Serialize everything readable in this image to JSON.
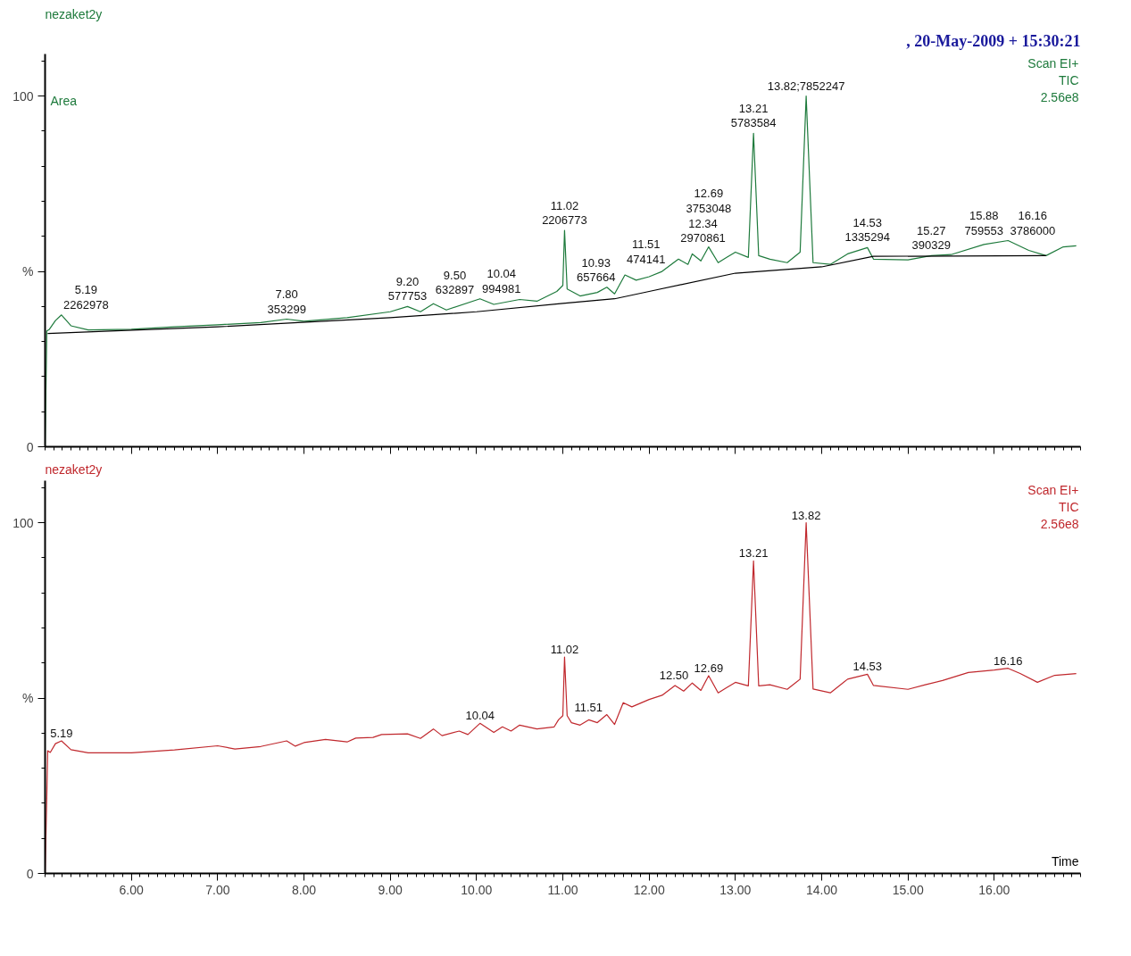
{
  "chart_data": [
    {
      "type": "line",
      "title": "nezaket2y",
      "subtitle": "Scan EI+\nTIC\n2.56e8",
      "xlim": [
        5,
        17
      ],
      "ylim": [
        0,
        112
      ],
      "xticks": [
        6,
        7,
        8,
        9,
        10,
        11,
        12,
        13,
        14,
        15,
        16
      ],
      "yticks": [
        0,
        {
          "value": 50,
          "label": "%"
        },
        100
      ],
      "tick_labels": "y",
      "series": [
        {
          "color": "#1e7a3c",
          "x": [
            5.0,
            5.02,
            5.05,
            5.12,
            5.19,
            5.3,
            5.5,
            6.0,
            6.5,
            7.0,
            7.5,
            7.8,
            8.0,
            8.5,
            9.0,
            9.2,
            9.35,
            9.5,
            9.65,
            10.04,
            10.2,
            10.5,
            10.7,
            10.93,
            11.0,
            11.02,
            11.05,
            11.2,
            11.4,
            11.51,
            11.6,
            11.72,
            11.85,
            12.0,
            12.15,
            12.34,
            12.45,
            12.5,
            12.6,
            12.69,
            12.8,
            12.9,
            13.0,
            13.15,
            13.21,
            13.27,
            13.4,
            13.6,
            13.75,
            13.82,
            13.9,
            14.1,
            14.3,
            14.53,
            14.6,
            15.0,
            15.27,
            15.5,
            15.88,
            16.16,
            16.4,
            16.6,
            16.8,
            16.95
          ],
          "values": [
            0,
            33,
            33.5,
            36,
            37.6,
            34.5,
            33.3,
            33.5,
            34.2,
            34.8,
            35.4,
            36.4,
            35.8,
            36.8,
            38.5,
            40,
            38.5,
            40.8,
            39,
            42.2,
            40.6,
            42,
            41.5,
            44.3,
            46,
            61.7,
            45,
            43,
            44,
            45.5,
            43.6,
            49,
            47.5,
            48.5,
            50,
            53.5,
            52,
            55,
            53,
            57,
            52.5,
            54,
            55.5,
            54,
            89.4,
            54.5,
            53.5,
            52.5,
            55.5,
            100,
            52.5,
            52,
            55,
            56.8,
            53.5,
            53.3,
            54.5,
            54.8,
            57.7,
            58.8,
            56,
            54.5,
            57,
            57.3
          ]
        },
        {
          "color": "#000000",
          "x": [
            5.03,
            7.0,
            9.0,
            10.0,
            11.0,
            11.6,
            12.0,
            13.0,
            14.0,
            14.6,
            16.6
          ],
          "values": [
            32.3,
            34.2,
            36.8,
            38.5,
            40.9,
            42.2,
            44.3,
            49.5,
            51.3,
            54.3,
            54.5
          ]
        }
      ],
      "annotations": [
        ", 20-May-2009 + 15:30:21",
        "Area",
        {
          "text": "5.19\n2262978",
          "x": 5.19,
          "y": 37.6
        },
        {
          "text": "7.80\n353299",
          "x": 7.8,
          "y": 36.4
        },
        {
          "text": "9.20\n577753",
          "x": 9.2,
          "y": 40
        },
        {
          "text": "9.50\n632897",
          "x": 9.5,
          "y": 40.8
        },
        {
          "text": "10.04\n994981",
          "x": 10.04,
          "y": 42.2
        },
        {
          "text": "10.93\n657664",
          "x": 10.93,
          "y": 44.3
        },
        {
          "text": "11.02\n2206773",
          "x": 11.02,
          "y": 61.7
        },
        {
          "text": "11.51\n474141",
          "x": 11.51,
          "y": 45.5
        },
        {
          "text": "12.34\n2970861",
          "x": 12.34,
          "y": 53.5
        },
        {
          "text": "12.69\n3753048",
          "x": 12.69,
          "y": 57
        },
        {
          "text": "13.21\n5783584",
          "x": 13.21,
          "y": 89.4
        },
        {
          "text": "13.82;7852247",
          "x": 13.82,
          "y": 100
        },
        {
          "text": "14.53\n1335294",
          "x": 14.53,
          "y": 56.8
        },
        {
          "text": "15.27\n390329",
          "x": 15.27,
          "y": 54.5
        },
        {
          "text": "15.88\n759553",
          "x": 15.88,
          "y": 57.7
        },
        {
          "text": "16.16\n3786000",
          "x": 16.16,
          "y": 58.8
        }
      ]
    },
    {
      "type": "line",
      "title": "nezaket2y",
      "subtitle": "Scan EI+\nTIC\n2.56e8",
      "xlabel": "Time",
      "xlim": [
        5,
        17
      ],
      "ylim": [
        0,
        112
      ],
      "xticks": [
        {
          "value": 6,
          "label": "6.00"
        },
        {
          "value": 7,
          "label": "7.00"
        },
        {
          "value": 8,
          "label": "8.00"
        },
        {
          "value": 9,
          "label": "9.00"
        },
        {
          "value": 10,
          "label": "10.00"
        },
        {
          "value": 11,
          "label": "11.00"
        },
        {
          "value": 12,
          "label": "12.00"
        },
        {
          "value": 13,
          "label": "13.00"
        },
        {
          "value": 14,
          "label": "14.00"
        },
        {
          "value": 15,
          "label": "15.00"
        },
        {
          "value": 16,
          "label": "16.00"
        }
      ],
      "yticks": [
        0,
        {
          "value": 50,
          "label": "%"
        },
        100
      ],
      "series": [
        {
          "color": "#c0282d",
          "x": [
            5.0,
            5.02,
            5.03,
            5.06,
            5.12,
            5.19,
            5.3,
            5.5,
            6.0,
            6.5,
            7.0,
            7.2,
            7.5,
            7.8,
            7.9,
            8.0,
            8.25,
            8.5,
            8.6,
            8.8,
            8.9,
            9.2,
            9.35,
            9.5,
            9.6,
            9.8,
            9.9,
            10.04,
            10.2,
            10.3,
            10.4,
            10.5,
            10.7,
            10.9,
            10.95,
            11.0,
            11.02,
            11.05,
            11.1,
            11.2,
            11.3,
            11.4,
            11.51,
            11.6,
            11.7,
            11.8,
            12.0,
            12.15,
            12.3,
            12.4,
            12.5,
            12.6,
            12.69,
            12.8,
            12.9,
            13.0,
            13.15,
            13.21,
            13.27,
            13.4,
            13.6,
            13.75,
            13.82,
            13.9,
            14.1,
            14.3,
            14.53,
            14.6,
            15.0,
            15.2,
            15.4,
            15.7,
            16.0,
            16.16,
            16.3,
            16.5,
            16.7,
            16.95
          ],
          "values": [
            0,
            22,
            35,
            34.5,
            37,
            37.8,
            35.3,
            34.4,
            34.4,
            35.2,
            36.4,
            35.5,
            36.2,
            37.8,
            36.3,
            37.3,
            38.2,
            37.5,
            38.6,
            38.8,
            39.6,
            39.8,
            38.5,
            41.2,
            39.3,
            40.6,
            39.6,
            42.8,
            40.2,
            41.8,
            40.6,
            42.3,
            41.2,
            41.8,
            43.8,
            45,
            61.7,
            45,
            43,
            42.3,
            43.8,
            43,
            45.3,
            42.5,
            48.7,
            47.5,
            49.6,
            50.8,
            53.6,
            52,
            54.3,
            52.2,
            56.4,
            51.5,
            53,
            54.5,
            53.5,
            89.1,
            53.5,
            53.8,
            52.5,
            55.4,
            100,
            52.6,
            51.5,
            55.4,
            56.8,
            53.6,
            52.5,
            53.8,
            55,
            57.3,
            58,
            58.5,
            57,
            54.5,
            56.5,
            57
          ]
        }
      ],
      "annotations": [
        {
          "text": "5.19",
          "x": 5.19,
          "y": 37.8
        },
        {
          "text": "10.04",
          "x": 10.04,
          "y": 42.8
        },
        {
          "text": "11.02",
          "x": 11.02,
          "y": 61.7
        },
        {
          "text": "11.51",
          "x": 11.51,
          "y": 45.3
        },
        {
          "text": "12.50",
          "x": 12.5,
          "y": 54.3
        },
        {
          "text": "12.69",
          "x": 12.69,
          "y": 56.4
        },
        {
          "text": "13.21",
          "x": 13.21,
          "y": 89.1
        },
        {
          "text": "13.82",
          "x": 13.82,
          "y": 100
        },
        {
          "text": "14.53",
          "x": 14.53,
          "y": 56.8
        },
        {
          "text": "16.16",
          "x": 16.16,
          "y": 58.5
        }
      ]
    }
  ]
}
